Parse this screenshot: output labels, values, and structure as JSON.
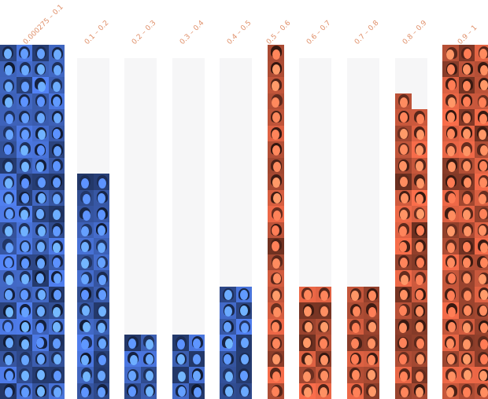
{
  "chart_data": {
    "type": "bar",
    "categories": [
      "0.000275 – 0.1",
      "0.1 – 0.2",
      "0.2 – 0.3",
      "0.3 – 0.4",
      "0.4 – 0.5",
      "0.5 – 0.6",
      "0.6 – 0.7",
      "0.7 – 0.8",
      "0.8 – 0.9",
      "0.9 – 1"
    ],
    "values": [
      90,
      28,
      8,
      8,
      14,
      27,
      14,
      14,
      37,
      88
    ],
    "columns_per_bin": [
      4,
      2,
      2,
      2,
      2,
      1,
      2,
      2,
      2,
      3
    ],
    "title": "",
    "xlabel": "",
    "ylabel": "",
    "grid": false,
    "legend": "none",
    "colors": {
      "low": "#3f64bd",
      "high": "#c2553a",
      "background_column": "#f6f6f7",
      "label": "#e0906a"
    }
  }
}
